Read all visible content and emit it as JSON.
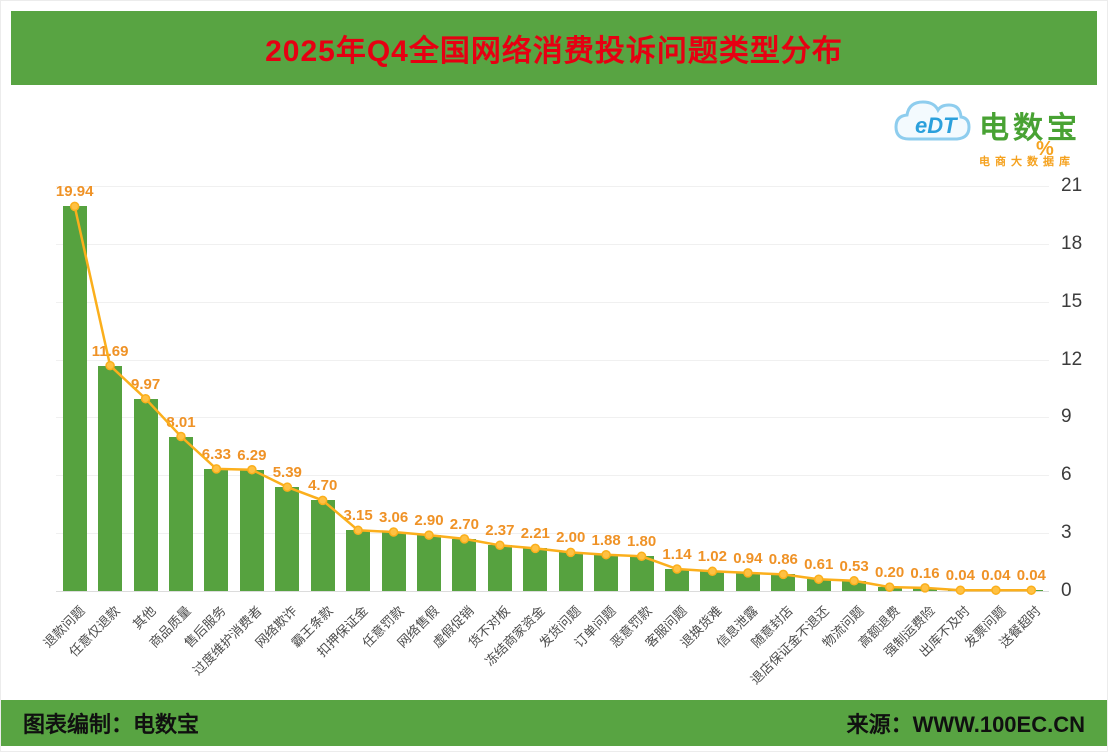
{
  "header": {
    "title": "2025年Q4全国网络消费投诉问题类型分布"
  },
  "brand": {
    "cloud_text": "eDT",
    "name": "电数宝",
    "subtitle": "电商大数据库"
  },
  "footer": {
    "left": "图表编制：电数宝",
    "right": "来源：WWW.100EC.CN"
  },
  "colors": {
    "banner_green": "#58a442",
    "title_red": "#e60012",
    "bar_green": "#56a23f",
    "line_orange": "#fbaf1c",
    "value_label_orange": "#ef9226",
    "brand_green": "#48a233",
    "brand_orange": "#f5a21f"
  },
  "chart_data": {
    "type": "bar",
    "title": "2025年Q4全国网络消费投诉问题类型分布",
    "unit": "%",
    "categories": [
      "退款问题",
      "任意仅退款",
      "其他",
      "商品质量",
      "售后服务",
      "过度维护消费者",
      "网络欺诈",
      "霸王条款",
      "扣押保证金",
      "任意罚款",
      "网络售假",
      "虚假促销",
      "货不对板",
      "冻结商家资金",
      "发货问题",
      "订单问题",
      "恶意罚款",
      "客服问题",
      "退换货难",
      "信息泄露",
      "随意封店",
      "退店保证金不退还",
      "物流问题",
      "高额退费",
      "强制运费险",
      "出库不及时",
      "发票问题",
      "送餐超时"
    ],
    "values": [
      19.94,
      11.69,
      9.97,
      8.01,
      6.33,
      6.29,
      5.39,
      4.7,
      3.15,
      3.06,
      2.9,
      2.7,
      2.37,
      2.21,
      2.0,
      1.88,
      1.8,
      1.14,
      1.02,
      0.94,
      0.86,
      0.61,
      0.53,
      0.2,
      0.16,
      0.04,
      0.04,
      0.04
    ],
    "yticks": [
      0,
      3,
      6,
      9,
      12,
      15,
      18,
      21
    ],
    "ylim": [
      0,
      21
    ],
    "ylabel": "%",
    "xlabel": "",
    "grid": true,
    "legend": false,
    "overlay_line": true,
    "bar_color": "#56a23f",
    "line_color": "#fbaf1c",
    "label_color": "#ef9226"
  }
}
